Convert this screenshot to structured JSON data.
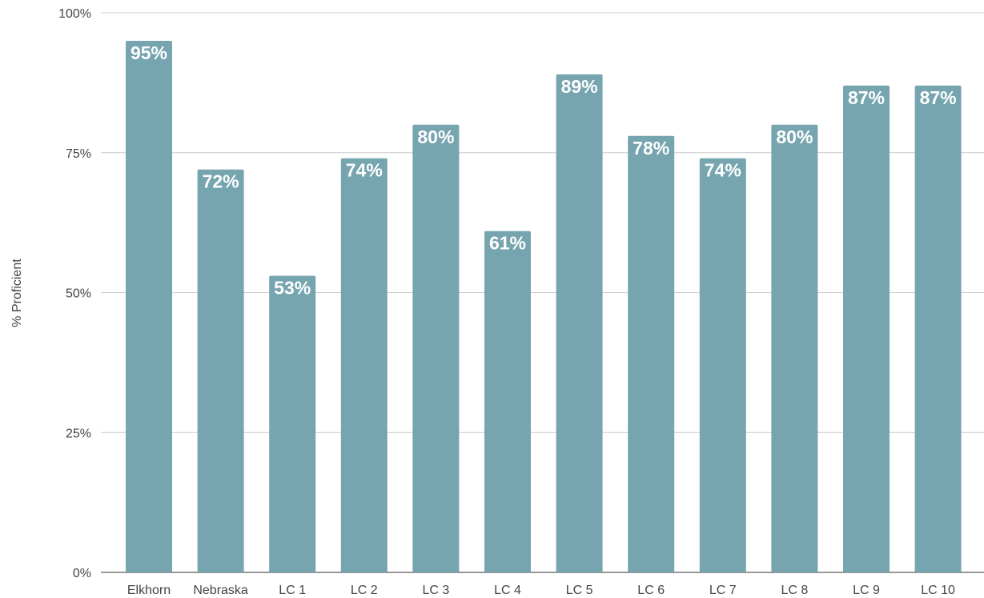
{
  "chart_data": {
    "type": "bar",
    "categories": [
      "Elkhorn",
      "Nebraska",
      "LC 1",
      "LC 2",
      "LC 3",
      "LC 4",
      "LC 5",
      "LC 6",
      "LC 7",
      "LC 8",
      "LC 9",
      "LC 10"
    ],
    "values": [
      95,
      72,
      53,
      74,
      80,
      61,
      89,
      78,
      74,
      80,
      87,
      87
    ],
    "data_labels": [
      "95%",
      "72%",
      "53%",
      "74%",
      "80%",
      "61%",
      "89%",
      "78%",
      "74%",
      "80%",
      "87%",
      "87%"
    ],
    "xlabel": "",
    "ylabel": "% Proficient",
    "ylim": [
      0,
      100
    ],
    "yticks": [
      0,
      25,
      50,
      75,
      100
    ],
    "ytick_labels": [
      "0%",
      "25%",
      "50%",
      "75%",
      "100%"
    ],
    "grid": true,
    "bar_color": "#76a5af",
    "label_color": "#ffffff"
  }
}
